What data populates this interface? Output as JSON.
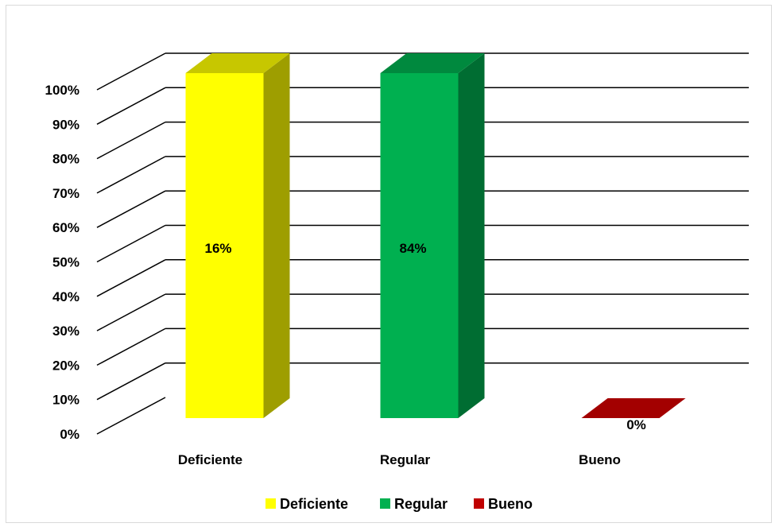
{
  "chart_data": {
    "type": "bar",
    "style": "3d-clustered-column",
    "categories": [
      "Deficiente",
      "Regular",
      "Bueno"
    ],
    "values": [
      16,
      84,
      0
    ],
    "data_labels": [
      "16%",
      "84%",
      "0%"
    ],
    "colors": [
      "#ffff00",
      "#00b050",
      "#c00000"
    ],
    "ylim": [
      0,
      100
    ],
    "y_ticks": [
      "0%",
      "10%",
      "20%",
      "30%",
      "40%",
      "50%",
      "60%",
      "70%",
      "80%",
      "90%",
      "100%"
    ],
    "grid": true,
    "legend": {
      "position": "bottom",
      "entries": [
        "Deficiente",
        "Regular",
        "Bueno"
      ]
    },
    "title": "",
    "xlabel": "",
    "ylabel": ""
  }
}
